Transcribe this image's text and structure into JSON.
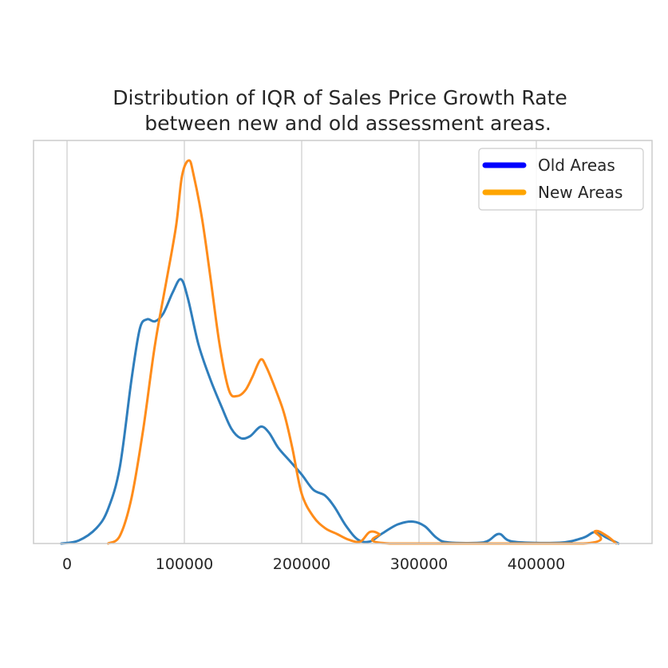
{
  "chart_data": {
    "type": "area",
    "title": "Distribution of IQR of Sales Price Growth Rate\nbetween new and old assessment areas.",
    "xlabel": "",
    "ylabel": "",
    "xlim": [
      -30000,
      480000
    ],
    "ylim": [
      0,
      1.0
    ],
    "x_ticks": [
      0,
      100000,
      200000,
      300000,
      400000
    ],
    "x_tick_labels": [
      "0",
      "100000",
      "200000",
      "300000",
      "400000"
    ],
    "grid": "vertical",
    "legend_position": "top-right",
    "y_note": "relative density (axis unlabeled)",
    "series": [
      {
        "name": "Old Areas",
        "color": "#2f7ebc",
        "legend_color": "#0000ff",
        "points": [
          [
            -5000,
            0.0
          ],
          [
            10000,
            0.008
          ],
          [
            25000,
            0.04
          ],
          [
            35000,
            0.09
          ],
          [
            45000,
            0.2
          ],
          [
            55000,
            0.43
          ],
          [
            62000,
            0.56
          ],
          [
            68000,
            0.585
          ],
          [
            75000,
            0.58
          ],
          [
            82000,
            0.6
          ],
          [
            90000,
            0.655
          ],
          [
            97000,
            0.69
          ],
          [
            103000,
            0.64
          ],
          [
            112000,
            0.52
          ],
          [
            122000,
            0.43
          ],
          [
            132000,
            0.355
          ],
          [
            140000,
            0.3
          ],
          [
            148000,
            0.275
          ],
          [
            156000,
            0.28
          ],
          [
            165000,
            0.305
          ],
          [
            172000,
            0.29
          ],
          [
            180000,
            0.25
          ],
          [
            190000,
            0.215
          ],
          [
            200000,
            0.18
          ],
          [
            210000,
            0.14
          ],
          [
            220000,
            0.125
          ],
          [
            228000,
            0.095
          ],
          [
            238000,
            0.045
          ],
          [
            248000,
            0.01
          ],
          [
            258000,
            0.005
          ],
          [
            268000,
            0.025
          ],
          [
            282000,
            0.05
          ],
          [
            295000,
            0.057
          ],
          [
            305000,
            0.045
          ],
          [
            315000,
            0.015
          ],
          [
            325000,
            0.003
          ],
          [
            355000,
            0.003
          ],
          [
            368000,
            0.025
          ],
          [
            380000,
            0.005
          ],
          [
            420000,
            0.002
          ],
          [
            440000,
            0.015
          ],
          [
            450000,
            0.03
          ],
          [
            460000,
            0.015
          ],
          [
            470000,
            0.0
          ]
        ]
      },
      {
        "name": "New Areas",
        "color": "#ff8c1a",
        "legend_color": "#ffa500",
        "points": [
          [
            35000,
            0.0
          ],
          [
            45000,
            0.02
          ],
          [
            55000,
            0.12
          ],
          [
            65000,
            0.3
          ],
          [
            75000,
            0.52
          ],
          [
            85000,
            0.69
          ],
          [
            93000,
            0.83
          ],
          [
            98000,
            0.96
          ],
          [
            104000,
            1.0
          ],
          [
            108000,
            0.96
          ],
          [
            115000,
            0.85
          ],
          [
            122000,
            0.7
          ],
          [
            130000,
            0.52
          ],
          [
            138000,
            0.4
          ],
          [
            145000,
            0.385
          ],
          [
            152000,
            0.4
          ],
          [
            158000,
            0.435
          ],
          [
            165000,
            0.48
          ],
          [
            170000,
            0.46
          ],
          [
            178000,
            0.4
          ],
          [
            185000,
            0.34
          ],
          [
            192000,
            0.25
          ],
          [
            200000,
            0.13
          ],
          [
            210000,
            0.07
          ],
          [
            220000,
            0.04
          ],
          [
            230000,
            0.025
          ],
          [
            240000,
            0.01
          ],
          [
            250000,
            0.005
          ],
          [
            258000,
            0.03
          ],
          [
            266000,
            0.025
          ],
          [
            275000,
            0.0
          ],
          [
            440000,
            0.0
          ],
          [
            450000,
            0.032
          ],
          [
            460000,
            0.02
          ],
          [
            468000,
            0.0
          ]
        ]
      }
    ]
  }
}
